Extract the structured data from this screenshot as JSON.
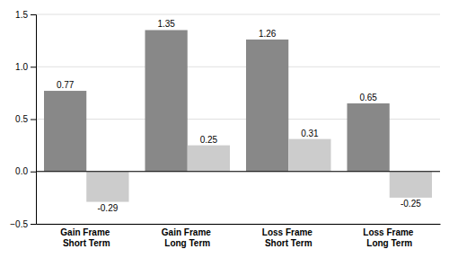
{
  "chart_data": {
    "type": "bar",
    "categories": [
      "Gain Frame Short Term",
      "Gain Frame Long Term",
      "Loss Frame Short Term",
      "Loss Frame Long Term"
    ],
    "series": [
      {
        "color": "#888888",
        "values": [
          0.77,
          1.35,
          1.26,
          0.65
        ]
      },
      {
        "color": "#cccccc",
        "values": [
          -0.29,
          0.25,
          0.31,
          -0.25
        ]
      }
    ],
    "ylim": [
      -0.5,
      1.5
    ],
    "yticks": [
      {
        "value": -0.5,
        "label": "−0.5"
      },
      {
        "value": 0,
        "label": "0.0"
      },
      0.5,
      {
        "value": 1,
        "label": "1.0"
      },
      1.5
    ],
    "grid": true,
    "data_labels": true
  }
}
